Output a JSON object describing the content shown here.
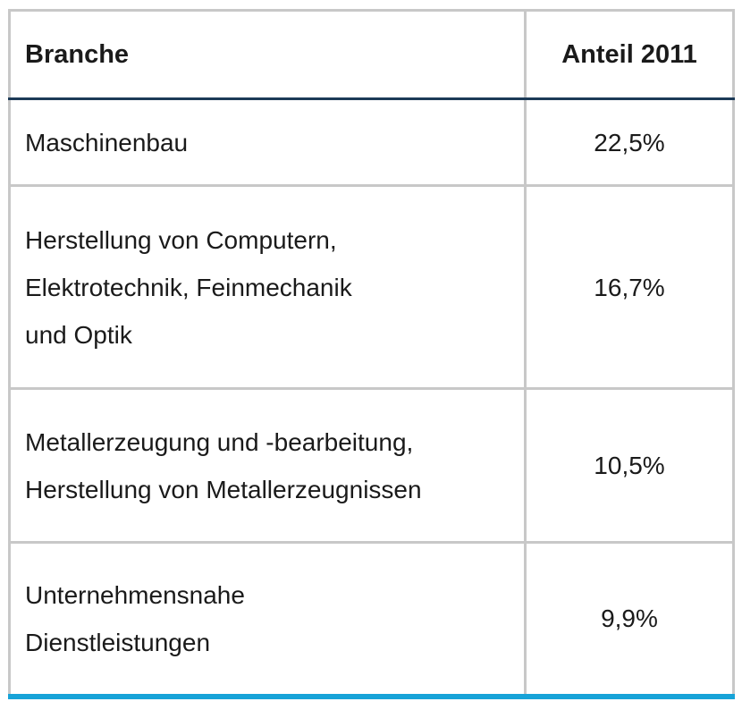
{
  "table": {
    "headers": {
      "branche": "Branche",
      "anteil": "Anteil 2011"
    },
    "rows": [
      {
        "branche_lines": [
          "Maschinenbau"
        ],
        "anteil": "22,5%"
      },
      {
        "branche_lines": [
          "Herstellung von Computern,",
          "Elektrotechnik, Feinmechanik",
          "und Optik"
        ],
        "anteil": "16,7%"
      },
      {
        "branche_lines": [
          "Metallerzeugung und -bearbeitung,",
          "Herstellung von Metallerzeugnissen"
        ],
        "anteil": "10,5%"
      },
      {
        "branche_lines": [
          "Unternehmensnahe",
          "Dienstleistungen"
        ],
        "anteil": "9,9%"
      }
    ],
    "colors": {
      "grid": "#c8c8c8",
      "header_rule": "#1c3a57",
      "bottom_rule": "#17a3d8"
    }
  }
}
